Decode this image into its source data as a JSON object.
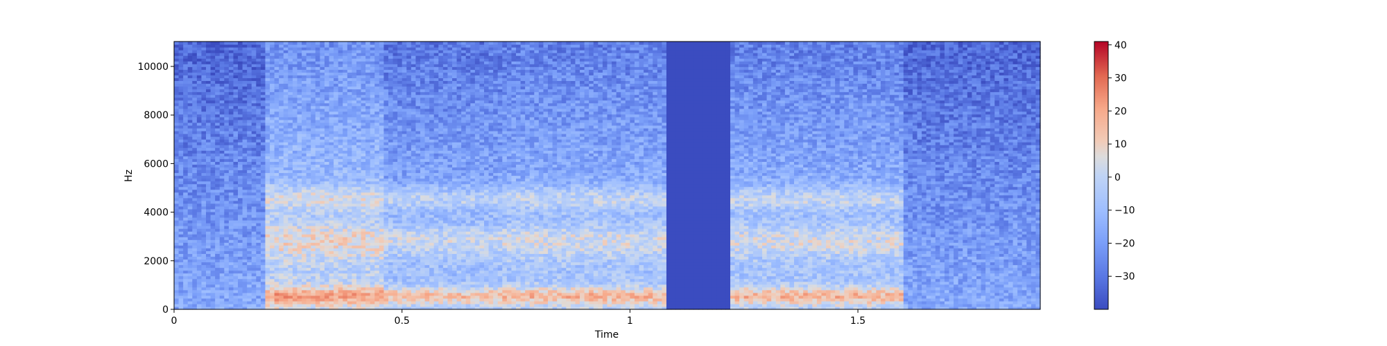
{
  "chart_data": {
    "type": "heatmap",
    "title": "",
    "xlabel": "Time",
    "ylabel": "Hz",
    "xlim": [
      0,
      1.9
    ],
    "ylim": [
      0,
      11025
    ],
    "x_ticks": [
      {
        "value": 0,
        "label": "0"
      },
      {
        "value": 0.5,
        "label": "0.5"
      },
      {
        "value": 1,
        "label": "1"
      },
      {
        "value": 1.5,
        "label": "1.5"
      }
    ],
    "y_ticks": [
      {
        "value": 0,
        "label": "0"
      },
      {
        "value": 2000,
        "label": "2000"
      },
      {
        "value": 4000,
        "label": "4000"
      },
      {
        "value": 6000,
        "label": "6000"
      },
      {
        "value": 8000,
        "label": "8000"
      },
      {
        "value": 10000,
        "label": "10000"
      }
    ],
    "colorbar": {
      "colormap": "coolwarm",
      "range": [
        -40,
        41
      ],
      "ticks": [
        {
          "value": 40,
          "label": "40"
        },
        {
          "value": 30,
          "label": "30"
        },
        {
          "value": 20,
          "label": "20"
        },
        {
          "value": 10,
          "label": "10"
        },
        {
          "value": 0,
          "label": "0"
        },
        {
          "value": -10,
          "label": "−10"
        },
        {
          "value": -20,
          "label": "−20"
        },
        {
          "value": -30,
          "label": "−30"
        }
      ]
    },
    "time_segments_s": [
      {
        "start": 0.0,
        "end": 0.2,
        "level_db": -22
      },
      {
        "start": 0.2,
        "end": 0.46,
        "level_db": -5
      },
      {
        "start": 0.46,
        "end": 0.72,
        "level_db": -12
      },
      {
        "start": 0.72,
        "end": 1.08,
        "level_db": -10
      },
      {
        "start": 1.08,
        "end": 1.22,
        "level_db": -40
      },
      {
        "start": 1.22,
        "end": 1.6,
        "level_db": -10
      },
      {
        "start": 1.6,
        "end": 1.9,
        "level_db": -22
      }
    ],
    "grid": false,
    "legend": "colorbar right"
  },
  "colors": {
    "background": "#ffffff",
    "axis": "#000000",
    "low": "#3b4cc0",
    "mid": "#dddddd",
    "high": "#b40426"
  }
}
